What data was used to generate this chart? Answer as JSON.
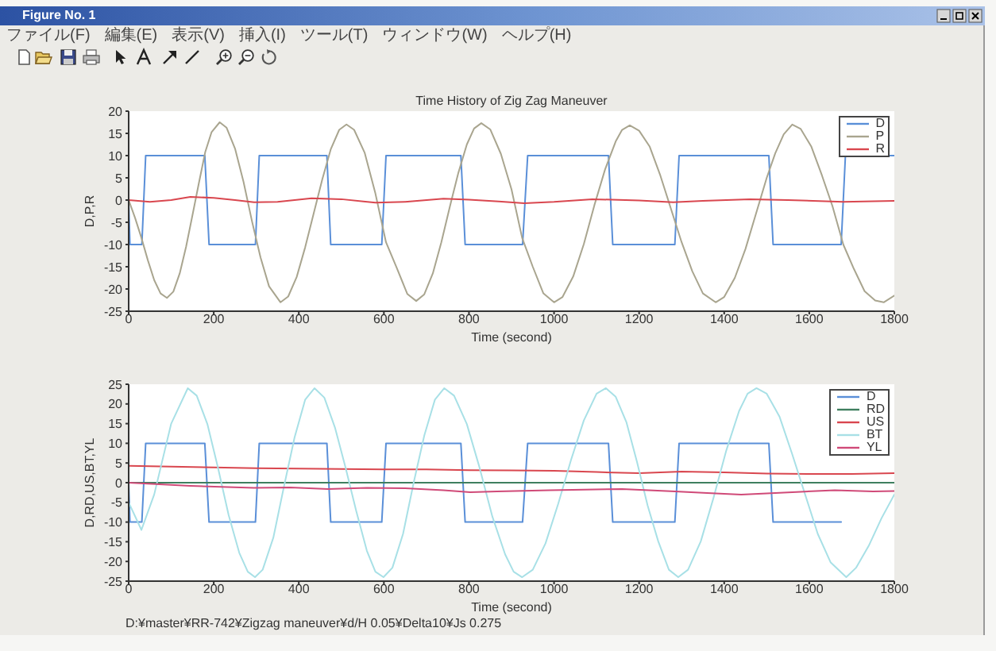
{
  "chart_data": [
    {
      "type": "line",
      "title": "Time History of Zig Zag Maneuver",
      "xlabel": "Time (second)",
      "ylabel": "D,P,R",
      "xlim": [
        0,
        1800
      ],
      "xticks": [
        0,
        200,
        400,
        600,
        800,
        1000,
        1200,
        1400,
        1600,
        1800
      ],
      "ylim": [
        -25,
        20
      ],
      "yticks": [
        -25,
        -20,
        -15,
        -10,
        -5,
        0,
        5,
        10,
        15,
        20
      ],
      "legend": "top right",
      "annotations": [
        "Figure No. 1",
        "ファイル(F)",
        "編集(E)",
        "表示(V)",
        "挿入(I)",
        "ツール(T)",
        "ウィンドウ(W)",
        "ヘルプ(H)"
      ],
      "series": [
        {
          "name": "D",
          "color": "#5a8fd8",
          "x": [
            0,
            3,
            31,
            40,
            179,
            189,
            298,
            307,
            466,
            475,
            595,
            605,
            781,
            791,
            926,
            938,
            1128,
            1138,
            1284,
            1294,
            1505,
            1515,
            1675,
            1685,
            1800
          ],
          "values": [
            0,
            -10,
            -10,
            10,
            10,
            -10,
            -10,
            10,
            10,
            -10,
            -10,
            10,
            10,
            -10,
            -10,
            10,
            10,
            -10,
            -10,
            10,
            10,
            -10,
            -10,
            10,
            10
          ]
        },
        {
          "name": "P",
          "color": "#a9a58f",
          "x": [
            0,
            15,
            30,
            45,
            60,
            75,
            90,
            105,
            120,
            135,
            150,
            165,
            180,
            195,
            214,
            230,
            250,
            270,
            290,
            310,
            330,
            357,
            375,
            395,
            415,
            435,
            455,
            475,
            495,
            512,
            530,
            555,
            580,
            605,
            630,
            655,
            676,
            695,
            715,
            735,
            755,
            775,
            795,
            812,
            829,
            850,
            875,
            900,
            925,
            950,
            975,
            1000,
            1020,
            1045,
            1070,
            1095,
            1120,
            1145,
            1160,
            1178,
            1200,
            1225,
            1250,
            1275,
            1300,
            1325,
            1350,
            1380,
            1400,
            1425,
            1450,
            1475,
            1500,
            1520,
            1540,
            1560,
            1580,
            1605,
            1630,
            1655,
            1680,
            1705,
            1730,
            1755,
            1775,
            1800
          ],
          "values": [
            0,
            -4,
            -8.5,
            -13.5,
            -18,
            -21,
            -22,
            -20.6,
            -16.5,
            -10.5,
            -3.4,
            3.8,
            10.8,
            15.3,
            17.5,
            16.3,
            11.6,
            4.1,
            -4.8,
            -12.9,
            -19.4,
            -23,
            -21.7,
            -17.3,
            -10.6,
            -3,
            4.6,
            11.4,
            15.8,
            17,
            15.8,
            10.6,
            1.5,
            -9.5,
            -15.2,
            -21.1,
            -22.7,
            -21.2,
            -16.5,
            -9.5,
            -1.5,
            6.1,
            12.5,
            16.1,
            17.3,
            15.9,
            10.4,
            2.4,
            -8.5,
            -15,
            -21,
            -23,
            -21.8,
            -17.2,
            -9.9,
            -1.1,
            6.9,
            13.2,
            15.8,
            16.8,
            15.6,
            12,
            5.5,
            -2,
            -9.5,
            -16,
            -21,
            -23,
            -21.8,
            -17.5,
            -11,
            -3,
            5,
            10.5,
            14.8,
            17,
            16,
            12,
            5.5,
            -1.5,
            -10,
            -15.5,
            -20.5,
            -22.6,
            -23,
            -21.5
          ]
        },
        {
          "name": "R",
          "color": "#d9474f",
          "x": [
            0,
            50,
            100,
            145,
            200,
            250,
            295,
            350,
            430,
            500,
            580,
            650,
            740,
            800,
            870,
            930,
            1000,
            1090,
            1200,
            1280,
            1350,
            1460,
            1550,
            1680,
            1800
          ],
          "values": [
            0,
            -0.4,
            0,
            0.7,
            0.5,
            0,
            -0.5,
            -0.4,
            0.4,
            0.2,
            -0.6,
            -0.4,
            0.3,
            0.1,
            -0.3,
            -0.7,
            -0.4,
            0.2,
            -0.1,
            -0.5,
            -0.2,
            0.2,
            0,
            -0.4,
            -0.2
          ]
        }
      ]
    },
    {
      "type": "line",
      "xlabel": "Time (second)",
      "ylabel": "D,RD,US,BT,YL",
      "xlim": [
        0,
        1800
      ],
      "xticks": [
        0,
        200,
        400,
        600,
        800,
        1000,
        1200,
        1400,
        1600,
        1800
      ],
      "ylim": [
        -25,
        25
      ],
      "yticks": [
        -25,
        -20,
        -15,
        -10,
        -5,
        0,
        5,
        10,
        15,
        20,
        25
      ],
      "legend": "top right",
      "annotations": [
        "D:¥master¥RR-742¥Zigzag maneuver¥d/H 0.05¥Delta10¥Js 0.275"
      ],
      "series": [
        {
          "name": "D",
          "color": "#5a8fd8",
          "x": [
            0,
            3,
            31,
            40,
            179,
            189,
            298,
            307,
            466,
            475,
            595,
            605,
            781,
            791,
            926,
            938,
            1128,
            1138,
            1284,
            1294,
            1505,
            1515,
            1675
          ],
          "values": [
            0,
            -10,
            -10,
            10,
            10,
            -10,
            -10,
            10,
            10,
            -10,
            -10,
            10,
            10,
            -10,
            -10,
            10,
            10,
            -10,
            -10,
            10,
            10,
            -10,
            -10
          ]
        },
        {
          "name": "RD",
          "color": "#3f7f5f",
          "x": [
            0,
            1800
          ],
          "values": [
            0,
            0
          ]
        },
        {
          "name": "US",
          "color": "#d9474f",
          "x": [
            0,
            100,
            200,
            300,
            400,
            500,
            600,
            700,
            800,
            900,
            1000,
            1100,
            1200,
            1300,
            1400,
            1500,
            1600,
            1700,
            1800
          ],
          "values": [
            4.3,
            4.1,
            3.9,
            3.7,
            3.6,
            3.5,
            3.4,
            3.4,
            3.2,
            3.1,
            3.0,
            2.7,
            2.4,
            2.8,
            2.6,
            2.3,
            2.2,
            2.2,
            2.4
          ]
        },
        {
          "name": "BT",
          "color": "#a8e0e6",
          "x": [
            0,
            30,
            60,
            100,
            139,
            160,
            185,
            210,
            235,
            260,
            280,
            297,
            315,
            340,
            365,
            390,
            415,
            437,
            460,
            485,
            510,
            535,
            560,
            580,
            599,
            620,
            645,
            670,
            695,
            720,
            742,
            765,
            795,
            825,
            855,
            885,
            905,
            925,
            950,
            980,
            1010,
            1040,
            1070,
            1100,
            1122,
            1145,
            1170,
            1195,
            1220,
            1245,
            1270,
            1292,
            1315,
            1345,
            1375,
            1405,
            1435,
            1455,
            1476,
            1500,
            1530,
            1560,
            1590,
            1620,
            1650,
            1687,
            1710,
            1740,
            1770,
            1800
          ],
          "values": [
            -5,
            -12,
            -3,
            15,
            24,
            22.1,
            14.9,
            3.8,
            -8.2,
            -17.8,
            -22.6,
            -24,
            -22.1,
            -14,
            -1,
            11.5,
            21.1,
            24,
            21.6,
            14,
            3.8,
            -7.2,
            -17.3,
            -22.6,
            -24,
            -21.6,
            -13,
            0,
            12,
            21.1,
            24,
            22.1,
            14.9,
            3.8,
            -8.6,
            -18.2,
            -22.6,
            -24,
            -22.1,
            -15.4,
            -5.3,
            5.8,
            15.8,
            22.6,
            24,
            21.8,
            15.4,
            5.3,
            -5.8,
            -14.9,
            -22.1,
            -24,
            -22.1,
            -14.9,
            -3.8,
            8.2,
            18.2,
            22.6,
            24,
            22.6,
            16.8,
            7.2,
            -2.9,
            -13,
            -20.2,
            -24,
            -21.6,
            -16,
            -9,
            -3
          ]
        },
        {
          "name": "YL",
          "color": "#d04a78",
          "x": [
            0,
            145,
            294,
            380,
            468,
            560,
            650,
            740,
            803,
            866,
            990,
            1160,
            1285,
            1360,
            1440,
            1560,
            1660,
            1750,
            1800
          ],
          "values": [
            0,
            -0.8,
            -1.3,
            -1.2,
            -1.6,
            -1.3,
            -1.4,
            -1.9,
            -2.4,
            -2.2,
            -1.9,
            -1.6,
            -2.2,
            -2.6,
            -3.0,
            -2.4,
            -1.9,
            -2.2,
            -2.1
          ]
        }
      ]
    }
  ]
}
